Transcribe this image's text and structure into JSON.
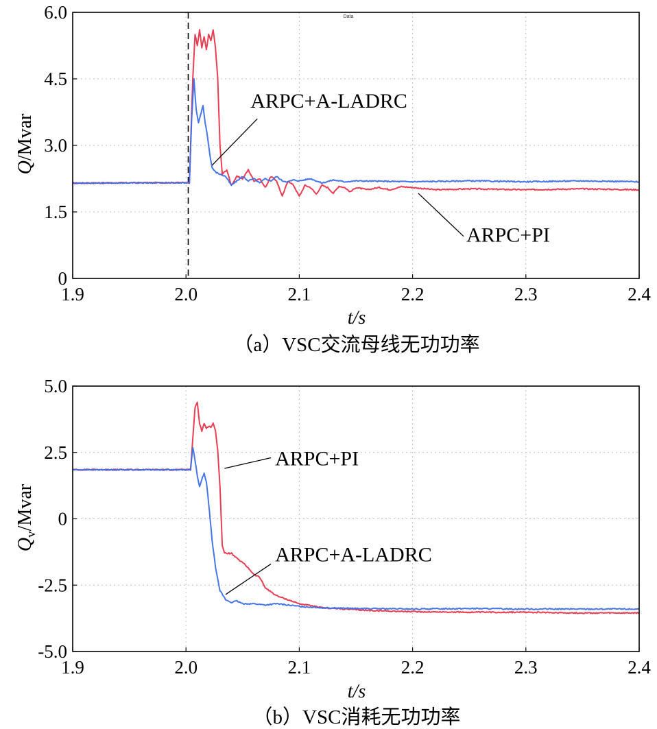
{
  "colors": {
    "red": "#e8334a",
    "blue": "#3c6fe6",
    "grid": "#bfbfbf"
  },
  "chart_data": [
    {
      "id": "a",
      "type": "line",
      "caption": "（a）VSC交流母线无功功率",
      "xlabel": "t/s",
      "ylabel_main": "Q",
      "ylabel_sub": "",
      "ylabel_unit": "/Mvar",
      "xlim": [
        1.9,
        2.4
      ],
      "ylim": [
        0,
        6.0
      ],
      "xticks": [
        1.9,
        2.0,
        2.1,
        2.2,
        2.3,
        2.4
      ],
      "xtick_labels": [
        "1.9",
        "2.0",
        "2.1",
        "2.2",
        "2.3",
        "2.4"
      ],
      "yticks": [
        0,
        1.5,
        3.0,
        4.5,
        6.0
      ],
      "ytick_labels": [
        "0",
        "1.5",
        "3.0",
        "4.5",
        "6.0"
      ],
      "grid": true,
      "vline_x": 2.002,
      "legend_text": "Data",
      "series": [
        {
          "name": "ARPC+PI",
          "color": "red",
          "points": [
            [
              1.9,
              2.15
            ],
            [
              2.0,
              2.16
            ],
            [
              2.003,
              2.16
            ],
            [
              2.006,
              4.5
            ],
            [
              2.008,
              5.5
            ],
            [
              2.01,
              5.25
            ],
            [
              2.012,
              5.6
            ],
            [
              2.014,
              5.2
            ],
            [
              2.016,
              5.45
            ],
            [
              2.018,
              5.15
            ],
            [
              2.02,
              5.5
            ],
            [
              2.022,
              5.35
            ],
            [
              2.024,
              5.6
            ],
            [
              2.026,
              5.2
            ],
            [
              2.028,
              4.5
            ],
            [
              2.03,
              3.0
            ],
            [
              2.032,
              2.35
            ],
            [
              2.036,
              2.45
            ],
            [
              2.04,
              2.1
            ],
            [
              2.045,
              2.3
            ],
            [
              2.05,
              2.25
            ],
            [
              2.055,
              2.45
            ],
            [
              2.06,
              2.2
            ],
            [
              2.065,
              2.25
            ],
            [
              2.07,
              2.05
            ],
            [
              2.075,
              2.3
            ],
            [
              2.08,
              2.2
            ],
            [
              2.085,
              1.85
            ],
            [
              2.09,
              2.2
            ],
            [
              2.095,
              2.1
            ],
            [
              2.1,
              1.85
            ],
            [
              2.105,
              2.1
            ],
            [
              2.11,
              2.05
            ],
            [
              2.115,
              1.9
            ],
            [
              2.12,
              2.1
            ],
            [
              2.125,
              2.05
            ],
            [
              2.13,
              1.92
            ],
            [
              2.135,
              2.08
            ],
            [
              2.14,
              2.05
            ],
            [
              2.145,
              1.95
            ],
            [
              2.15,
              2.05
            ],
            [
              2.16,
              2.0
            ],
            [
              2.17,
              2.05
            ],
            [
              2.18,
              2.0
            ],
            [
              2.19,
              2.07
            ],
            [
              2.2,
              2.05
            ],
            [
              2.22,
              2.0
            ],
            [
              2.25,
              2.02
            ],
            [
              2.3,
              2.0
            ],
            [
              2.35,
              2.02
            ],
            [
              2.4,
              2.0
            ]
          ]
        },
        {
          "name": "ARPC+A-LADRC",
          "color": "blue",
          "points": [
            [
              1.9,
              2.15
            ],
            [
              2.0,
              2.16
            ],
            [
              2.003,
              2.16
            ],
            [
              2.005,
              3.6
            ],
            [
              2.007,
              4.5
            ],
            [
              2.009,
              3.8
            ],
            [
              2.011,
              3.5
            ],
            [
              2.013,
              3.7
            ],
            [
              2.015,
              3.9
            ],
            [
              2.017,
              3.5
            ],
            [
              2.019,
              3.2
            ],
            [
              2.021,
              2.8
            ],
            [
              2.023,
              2.5
            ],
            [
              2.026,
              2.4
            ],
            [
              2.03,
              2.35
            ],
            [
              2.035,
              2.3
            ],
            [
              2.04,
              2.1
            ],
            [
              2.045,
              2.2
            ],
            [
              2.05,
              2.3
            ],
            [
              2.055,
              2.2
            ],
            [
              2.06,
              2.25
            ],
            [
              2.065,
              2.15
            ],
            [
              2.07,
              2.25
            ],
            [
              2.075,
              2.2
            ],
            [
              2.08,
              2.3
            ],
            [
              2.085,
              2.2
            ],
            [
              2.09,
              2.18
            ],
            [
              2.095,
              2.22
            ],
            [
              2.1,
              2.2
            ],
            [
              2.11,
              2.25
            ],
            [
              2.12,
              2.15
            ],
            [
              2.13,
              2.22
            ],
            [
              2.14,
              2.18
            ],
            [
              2.15,
              2.2
            ],
            [
              2.2,
              2.18
            ],
            [
              2.25,
              2.2
            ],
            [
              2.3,
              2.18
            ],
            [
              2.35,
              2.2
            ],
            [
              2.4,
              2.18
            ]
          ]
        }
      ],
      "annotations": [
        {
          "text": "ARPC+A-LADRC",
          "data_x": 2.023,
          "data_y": 2.55,
          "label_x": 2.063,
          "label_y": 3.6
        },
        {
          "text": "ARPC+PI",
          "data_x": 2.205,
          "data_y": 1.92,
          "label_x": 2.245,
          "label_y": 0.95
        }
      ]
    },
    {
      "id": "b",
      "type": "line",
      "caption": "（b）VSC消耗无功功率",
      "xlabel": "t/s",
      "ylabel_main": "Q",
      "ylabel_sub": "v",
      "ylabel_unit": "/Mvar",
      "xlim": [
        1.9,
        2.4
      ],
      "ylim": [
        -5.0,
        5.0
      ],
      "xticks": [
        1.9,
        2.0,
        2.1,
        2.2,
        2.3,
        2.4
      ],
      "xtick_labels": [
        "1.9",
        "2.0",
        "2.1",
        "2.2",
        "2.3",
        "2.4"
      ],
      "yticks": [
        -5.0,
        -2.5,
        0,
        2.5,
        5.0
      ],
      "ytick_labels": [
        "-5.0",
        "-2.5",
        "0",
        "2.5",
        "5.0"
      ],
      "grid": true,
      "vline_x": null,
      "legend_text": "",
      "series": [
        {
          "name": "ARPC+PI",
          "color": "red",
          "points": [
            [
              1.9,
              1.85
            ],
            [
              2.0,
              1.85
            ],
            [
              2.004,
              1.85
            ],
            [
              2.006,
              3.0
            ],
            [
              2.008,
              4.2
            ],
            [
              2.01,
              4.4
            ],
            [
              2.012,
              3.6
            ],
            [
              2.014,
              3.3
            ],
            [
              2.016,
              3.6
            ],
            [
              2.018,
              3.4
            ],
            [
              2.02,
              3.5
            ],
            [
              2.022,
              3.45
            ],
            [
              2.024,
              3.6
            ],
            [
              2.026,
              3.3
            ],
            [
              2.028,
              2.6
            ],
            [
              2.03,
              1.2
            ],
            [
              2.032,
              -1.0
            ],
            [
              2.034,
              -1.3
            ],
            [
              2.04,
              -1.3
            ],
            [
              2.045,
              -1.5
            ],
            [
              2.05,
              -1.65
            ],
            [
              2.055,
              -1.85
            ],
            [
              2.06,
              -2.1
            ],
            [
              2.065,
              -2.2
            ],
            [
              2.07,
              -2.6
            ],
            [
              2.075,
              -2.75
            ],
            [
              2.08,
              -2.9
            ],
            [
              2.09,
              -3.05
            ],
            [
              2.1,
              -3.2
            ],
            [
              2.12,
              -3.35
            ],
            [
              2.14,
              -3.4
            ],
            [
              2.16,
              -3.45
            ],
            [
              2.2,
              -3.5
            ],
            [
              2.25,
              -3.52
            ],
            [
              2.3,
              -3.52
            ],
            [
              2.35,
              -3.55
            ],
            [
              2.4,
              -3.55
            ]
          ]
        },
        {
          "name": "ARPC+A-LADRC",
          "color": "blue",
          "points": [
            [
              1.9,
              1.85
            ],
            [
              2.0,
              1.85
            ],
            [
              2.004,
              1.85
            ],
            [
              2.006,
              2.7
            ],
            [
              2.008,
              2.2
            ],
            [
              2.01,
              1.6
            ],
            [
              2.012,
              1.2
            ],
            [
              2.014,
              1.5
            ],
            [
              2.016,
              1.7
            ],
            [
              2.018,
              1.4
            ],
            [
              2.02,
              0.6
            ],
            [
              2.023,
              -0.8
            ],
            [
              2.026,
              -1.8
            ],
            [
              2.03,
              -2.7
            ],
            [
              2.035,
              -3.05
            ],
            [
              2.04,
              -3.15
            ],
            [
              2.045,
              -3.1
            ],
            [
              2.05,
              -3.2
            ],
            [
              2.06,
              -3.2
            ],
            [
              2.07,
              -3.25
            ],
            [
              2.08,
              -3.2
            ],
            [
              2.1,
              -3.3
            ],
            [
              2.12,
              -3.35
            ],
            [
              2.15,
              -3.38
            ],
            [
              2.2,
              -3.4
            ],
            [
              2.25,
              -3.38
            ],
            [
              2.3,
              -3.4
            ],
            [
              2.35,
              -3.4
            ],
            [
              2.4,
              -3.4
            ]
          ]
        }
      ],
      "annotations": [
        {
          "text": "ARPC+PI",
          "data_x": 2.034,
          "data_y": 1.9,
          "label_x": 2.075,
          "label_y": 2.3
        },
        {
          "text": "ARPC+A-LADRC",
          "data_x": 2.035,
          "data_y": -2.85,
          "label_x": 2.075,
          "label_y": -1.7
        }
      ]
    }
  ]
}
